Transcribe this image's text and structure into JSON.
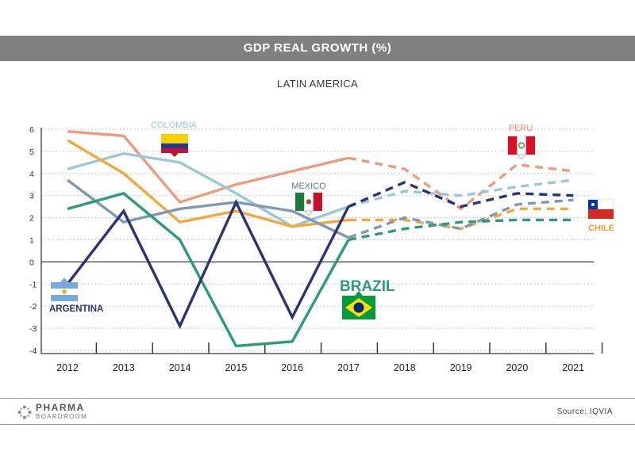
{
  "header": {
    "title": "GDP REAL GROWTH (%)"
  },
  "subtitle": "LATIN AMERICA",
  "footer": {
    "logo_top": "PHARMA",
    "logo_bottom": "BOARDROOM",
    "source": "Source: IQVIA"
  },
  "chart_data": {
    "type": "line",
    "title": "GDP REAL GROWTH (%)",
    "subtitle": "LATIN AMERICA",
    "x": [
      2012,
      2013,
      2014,
      2015,
      2016,
      2017,
      2018,
      2019,
      2020,
      2021
    ],
    "ylim": [
      -4,
      6
    ],
    "yticks": [
      -4,
      -3,
      -2,
      -1,
      0,
      1,
      2,
      3,
      4,
      5,
      6
    ],
    "ytick_labels": [
      "-4",
      "-3",
      "-2",
      "-1",
      "0",
      "1",
      "2",
      "3",
      "4",
      "5",
      "6"
    ],
    "grid": "horizontal dotted",
    "actual_until": 2017,
    "forecast_style": "dashed after 2017",
    "series": [
      {
        "name": "ARGENTINA",
        "color": "#2b3375",
        "values": [
          -1.0,
          2.3,
          -2.9,
          2.7,
          -2.5,
          2.5,
          3.6,
          2.5,
          3.1,
          3.0
        ]
      },
      {
        "name": "BRAZIL",
        "color": "#2a9c7b",
        "values": [
          2.4,
          3.1,
          1.0,
          -3.8,
          -3.6,
          1.0,
          1.5,
          1.8,
          1.9,
          1.9
        ]
      },
      {
        "name": "CHILE",
        "color": "#f0a840",
        "values": [
          5.5,
          4.0,
          1.8,
          2.3,
          1.6,
          1.9,
          1.9,
          1.5,
          2.4,
          2.4
        ]
      },
      {
        "name": "COLOMBIA",
        "color": "#9ac9cf",
        "values": [
          4.2,
          4.9,
          4.5,
          3.1,
          1.6,
          2.5,
          3.2,
          3.0,
          3.4,
          3.7
        ]
      },
      {
        "name": "MEXICO",
        "color": "#8097b5",
        "values": [
          3.7,
          1.8,
          2.4,
          2.7,
          2.3,
          1.1,
          2.0,
          1.5,
          2.6,
          2.8
        ]
      },
      {
        "name": "PERU",
        "color": "#ee9b7d",
        "values": [
          5.9,
          5.7,
          2.7,
          3.5,
          4.1,
          4.7,
          4.2,
          2.4,
          4.4,
          4.1
        ]
      }
    ],
    "labels": {
      "argentina": "ARGENTINA",
      "brazil": "BRAZIL",
      "chile": "CHILE",
      "colombia": "COLOMBIA",
      "mexico": "MEXICO",
      "peru": "PERU"
    }
  }
}
